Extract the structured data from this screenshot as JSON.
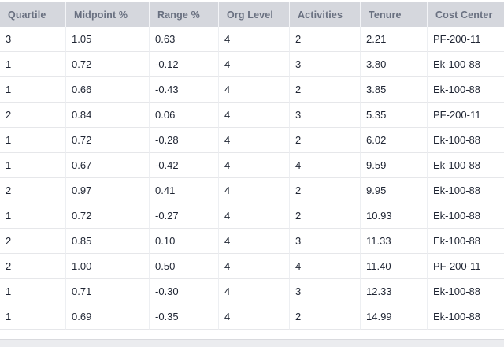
{
  "table": {
    "columns": [
      "Quartile",
      "Midpoint %",
      "Range %",
      "Org Level",
      "Activities",
      "Tenure",
      "Cost Center"
    ],
    "rows": [
      [
        "3",
        "1.05",
        "0.63",
        "4",
        "2",
        "2.21",
        "PF-200-11"
      ],
      [
        "1",
        "0.72",
        "-0.12",
        "4",
        "3",
        "3.80",
        "Ek-100-88"
      ],
      [
        "1",
        "0.66",
        "-0.43",
        "4",
        "2",
        "3.85",
        "Ek-100-88"
      ],
      [
        "2",
        "0.84",
        "0.06",
        "4",
        "3",
        "5.35",
        "PF-200-11"
      ],
      [
        "1",
        "0.72",
        "-0.28",
        "4",
        "2",
        "6.02",
        "Ek-100-88"
      ],
      [
        "1",
        "0.67",
        "-0.42",
        "4",
        "4",
        "9.59",
        "Ek-100-88"
      ],
      [
        "2",
        "0.97",
        "0.41",
        "4",
        "2",
        "9.95",
        "Ek-100-88"
      ],
      [
        "1",
        "0.72",
        "-0.27",
        "4",
        "2",
        "10.93",
        "Ek-100-88"
      ],
      [
        "2",
        "0.85",
        "0.10",
        "4",
        "3",
        "11.33",
        "Ek-100-88"
      ],
      [
        "2",
        "1.00",
        "0.50",
        "4",
        "4",
        "11.40",
        "PF-200-11"
      ],
      [
        "1",
        "0.71",
        "-0.30",
        "4",
        "3",
        "12.33",
        "Ek-100-88"
      ],
      [
        "1",
        "0.69",
        "-0.35",
        "4",
        "2",
        "14.99",
        "Ek-100-88"
      ]
    ]
  },
  "colors": {
    "header_bg": "#d5d7dd",
    "header_text": "#697080",
    "body_text": "#1f2533",
    "row_divider": "#e6e7ea",
    "column_divider": "#edeff2",
    "footer_bg": "#ebecef"
  }
}
